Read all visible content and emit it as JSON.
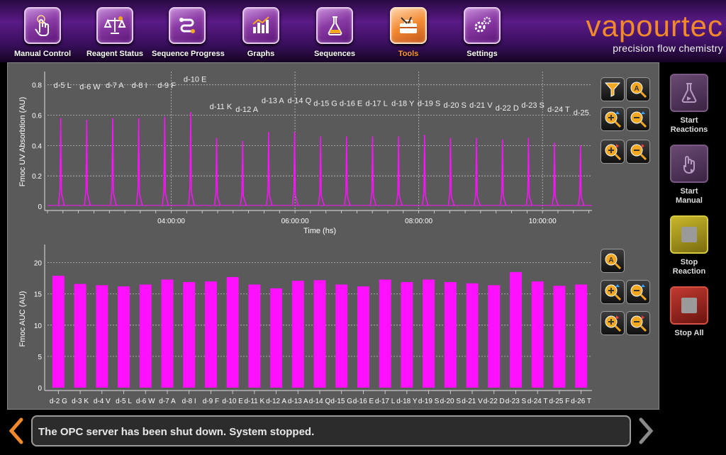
{
  "nav": {
    "items": [
      {
        "label": "Manual Control",
        "icon": "hand-pointer-icon"
      },
      {
        "label": "Reagent Status",
        "icon": "scale-icon"
      },
      {
        "label": "Sequence Progress",
        "icon": "sequence-icon"
      },
      {
        "label": "Graphs",
        "icon": "bar-chart-icon"
      },
      {
        "label": "Sequences",
        "icon": "flask-chain-icon"
      },
      {
        "label": "Tools",
        "icon": "toolbox-icon",
        "active": true
      },
      {
        "label": "Settings",
        "icon": "gears-icon"
      }
    ]
  },
  "logo": {
    "word": "vapourtec",
    "tagline": "precision flow chemistry"
  },
  "colors": {
    "accent": "#f28a2c",
    "magenta": "#ff10ff",
    "panel": "#5a5a5a"
  },
  "chart_data": [
    {
      "type": "line",
      "ylabel": "Fmoc UV Absorbtion (AU)",
      "xlabel": "Time (hs)",
      "ylim": [
        0,
        0.85
      ],
      "yticks": [
        "0",
        "0.2",
        "0.4",
        "0.6",
        "0.8"
      ],
      "xticks": [
        {
          "label": "04:00:00",
          "h": 4
        },
        {
          "label": "06:00:00",
          "h": 6
        },
        {
          "label": "08:00:00",
          "h": 8
        },
        {
          "label": "10:00:00",
          "h": 10
        }
      ],
      "xlim": [
        2.0,
        10.8
      ],
      "grid": true,
      "peaks": [
        {
          "label": "d-5 L",
          "t": 2.42,
          "y": 0.58,
          "ly": 0.78
        },
        {
          "label": "d-6 W",
          "t": 2.84,
          "y": 0.57,
          "ly": 0.77
        },
        {
          "label": "d-7 A",
          "t": 3.26,
          "y": 0.58,
          "ly": 0.78
        },
        {
          "label": "d-8 I",
          "t": 3.68,
          "y": 0.58,
          "ly": 0.78
        },
        {
          "label": "d-9 F",
          "t": 4.1,
          "y": 0.59,
          "ly": 0.78
        },
        {
          "label": "d-10 E",
          "t": 4.52,
          "y": 0.62,
          "ly": 0.82
        },
        {
          "label": "d-11 K",
          "t": 4.94,
          "y": 0.45,
          "ly": 0.64
        },
        {
          "label": "d-12 A",
          "t": 5.36,
          "y": 0.43,
          "ly": 0.62
        },
        {
          "label": "d-13 A",
          "t": 5.78,
          "y": 0.49,
          "ly": 0.68
        },
        {
          "label": "d-14 Q",
          "t": 6.2,
          "y": 0.49,
          "ly": 0.68
        },
        {
          "label": "d-15 G",
          "t": 6.62,
          "y": 0.46,
          "ly": 0.66
        },
        {
          "label": "d-16 E",
          "t": 7.04,
          "y": 0.46,
          "ly": 0.66
        },
        {
          "label": "d-17 L",
          "t": 7.46,
          "y": 0.46,
          "ly": 0.66
        },
        {
          "label": "d-18 Y",
          "t": 7.88,
          "y": 0.46,
          "ly": 0.66
        },
        {
          "label": "d-19 S",
          "t": 8.3,
          "y": 0.47,
          "ly": 0.66
        },
        {
          "label": "d-20 S",
          "t": 8.72,
          "y": 0.45,
          "ly": 0.65
        },
        {
          "label": "d-21 V",
          "t": 9.14,
          "y": 0.45,
          "ly": 0.65
        },
        {
          "label": "d-22 D",
          "t": 9.56,
          "y": 0.44,
          "ly": 0.63
        },
        {
          "label": "d-23 S",
          "t": 9.98,
          "y": 0.45,
          "ly": 0.65
        },
        {
          "label": "d-24 T",
          "t": 10.4,
          "y": 0.42,
          "ly": 0.62
        },
        {
          "label": "d-25",
          "t": 10.82,
          "y": 0.4,
          "ly": 0.6
        }
      ]
    },
    {
      "type": "bar",
      "ylabel": "Fmoc AUC (AU)",
      "ylim": [
        0,
        22
      ],
      "yticks": [
        "0",
        "5",
        "10",
        "15",
        "20"
      ],
      "grid": true,
      "categories": [
        "d-2 G",
        "d-3 K",
        "d-4 V",
        "d-5 L",
        "d-6 W",
        "d-7 A",
        "d-8 I",
        "d-9 F",
        "d-10 E",
        "d-11 K",
        "d-12 A",
        "d-13 A",
        "d-14 Q",
        "d-15 G",
        "d-16 E",
        "d-17 L",
        "d-18 Y",
        "d-19 S",
        "d-20 S",
        "d-21 V",
        "d-22 D",
        "d-23 S",
        "d-24 T",
        "d-25 F",
        "d-26 T"
      ],
      "values": [
        17.9,
        16.6,
        16.4,
        16.2,
        16.5,
        17.3,
        16.9,
        17.0,
        17.7,
        16.5,
        15.9,
        17.1,
        17.2,
        16.5,
        16.2,
        17.3,
        16.9,
        17.3,
        16.9,
        16.7,
        16.4,
        18.5,
        17.0,
        16.3,
        16.5
      ]
    }
  ],
  "side": {
    "start_reactions": "Start\nReactions",
    "start_manual": "Start\nManual",
    "stop_reaction": "Stop\nReaction",
    "stop_all": "Stop All"
  },
  "status": {
    "message": "The OPC server has been shut down. System stopped."
  }
}
